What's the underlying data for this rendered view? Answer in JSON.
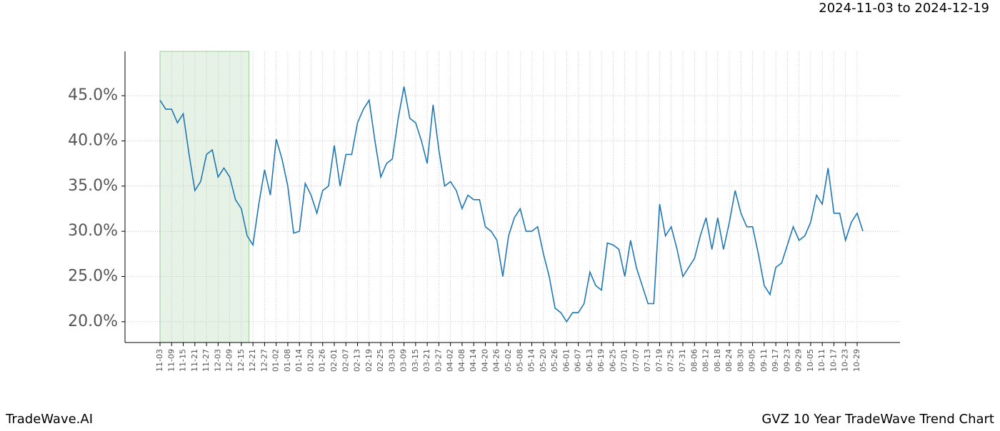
{
  "chart_data": {
    "type": "line",
    "subtitle": "2024-11-03 to 2024-12-19",
    "brand": "TradeWave.AI",
    "title": "GVZ 10 Year TradeWave Trend Chart",
    "color": "#1f77b4",
    "highlight_color": "#e5f2e5",
    "grid": true,
    "categories": [
      "11-03",
      null,
      "11-09",
      null,
      "11-15",
      null,
      "11-21",
      null,
      "11-27",
      null,
      "12-03",
      null,
      "12-09",
      null,
      "12-15",
      null,
      "12-21",
      null,
      "12-27",
      null,
      "01-02",
      null,
      "01-08",
      null,
      "01-14",
      null,
      "01-20",
      null,
      "01-26",
      null,
      "02-01",
      null,
      "02-07",
      null,
      "02-13",
      null,
      "02-19",
      null,
      "02-25",
      null,
      "03-03",
      null,
      "03-09",
      null,
      "03-15",
      null,
      "03-21",
      null,
      "03-27",
      null,
      "04-02",
      null,
      "04-08",
      null,
      "04-14",
      null,
      "04-20",
      null,
      "04-26",
      null,
      "05-02",
      null,
      "05-08",
      null,
      "05-14",
      null,
      "05-20",
      null,
      "05-26",
      null,
      "06-01",
      null,
      "06-07",
      null,
      "06-13",
      null,
      "06-19",
      null,
      "06-25",
      null,
      "07-01",
      null,
      "07-07",
      null,
      "07-13",
      null,
      "07-19",
      null,
      "07-25",
      null,
      "07-31",
      null,
      "08-06",
      null,
      "08-12",
      null,
      "08-18",
      null,
      "08-24",
      null,
      "08-30",
      null,
      "09-05",
      null,
      "09-11",
      null,
      "09-17",
      null,
      "09-23",
      null,
      "09-29",
      null,
      "10-05",
      null,
      "10-11",
      null,
      "10-17",
      null,
      "10-23",
      null,
      "10-29",
      null
    ],
    "values": [
      44.5,
      43.5,
      43.5,
      42,
      43,
      38.5,
      34.5,
      35.5,
      38.5,
      39,
      36,
      37,
      36,
      33.5,
      32.5,
      29.5,
      28.5,
      33,
      36.8,
      34,
      40.2,
      38,
      35,
      29.8,
      30,
      35.3,
      34,
      32,
      34.5,
      35,
      39.5,
      35,
      38.5,
      38.5,
      42,
      43.5,
      44.5,
      40,
      36,
      37.5,
      38,
      42.5,
      46,
      42.5,
      42,
      40,
      37.5,
      44,
      39,
      35,
      35.5,
      34.5,
      32.5,
      34,
      33.5,
      33.5,
      30.5,
      30,
      29,
      25,
      29.5,
      31.5,
      32.5,
      30,
      30,
      30.5,
      27.5,
      25,
      21.5,
      21,
      20,
      21,
      21,
      22,
      25.5,
      24,
      23.5,
      28.7,
      28.5,
      28,
      25,
      29,
      26,
      24,
      22,
      22,
      33,
      29.5,
      30.5,
      28,
      25,
      26,
      27,
      29.5,
      31.5,
      28,
      31.5,
      28,
      31,
      34.5,
      32,
      30.5,
      30.5,
      27.5,
      24,
      23,
      26,
      26.5,
      28.5,
      30.5,
      29,
      29.5,
      31,
      34,
      33,
      37,
      32,
      32,
      29,
      31,
      32,
      30
    ],
    "ylim": [
      17.7,
      49.9
    ],
    "yticks": [
      {
        "value": 20,
        "label": "20.0%"
      },
      {
        "value": 25,
        "label": "25.0%"
      },
      {
        "value": 30,
        "label": "30.0%"
      },
      {
        "value": 35,
        "label": "35.0%"
      },
      {
        "value": 40,
        "label": "40.0%"
      },
      {
        "value": 45,
        "label": "45.0%"
      }
    ]
  }
}
